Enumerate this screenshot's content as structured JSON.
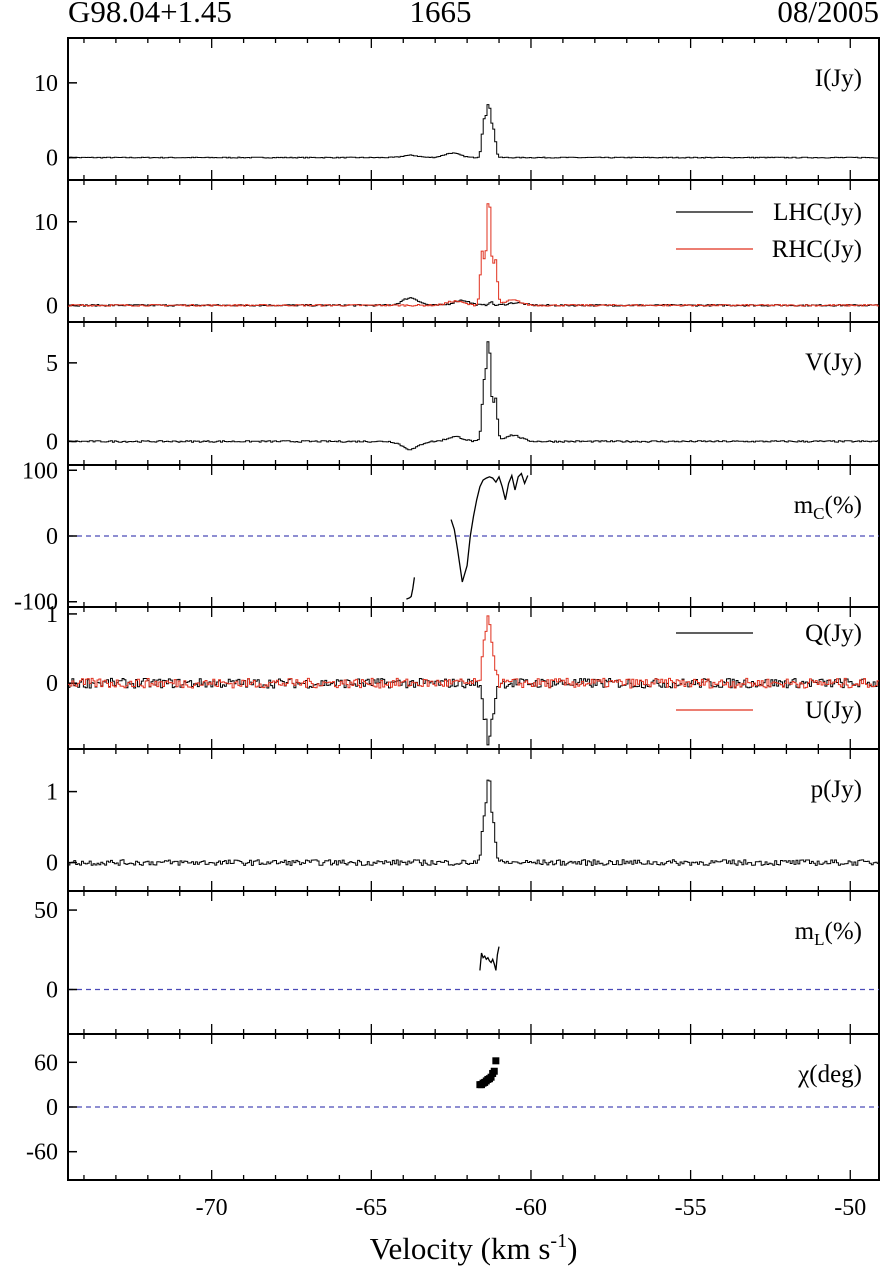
{
  "header": {
    "left": "G98.04+1.45",
    "center": "1665",
    "right": "08/2005"
  },
  "chart_data": {
    "type": "line",
    "xlabel": "Velocity (km s",
    "xlabel_sup": "-1",
    "xlabel_close": ")",
    "xlim": [
      -74.5,
      -49.1
    ],
    "xticks": [
      -70,
      -65,
      -60,
      -55,
      -50
    ],
    "x_tick_labels": [
      "-70",
      "-65",
      "-60",
      "-55",
      "-50"
    ],
    "panels": [
      {
        "id": "I",
        "label": "I(Jy)",
        "ylim": [
          -3,
          16
        ],
        "yticks": [
          0,
          10
        ],
        "ytick_labels": [
          "0",
          "10"
        ],
        "series": [
          {
            "name": "I(Jy)",
            "color": "#000000",
            "style": "step",
            "peaks": [
              [
                -61.35,
                6.8
              ],
              [
                -61.5,
                4.8
              ],
              [
                -61.2,
                3.5
              ],
              [
                -62.5,
                0.6
              ],
              [
                -63.8,
                0.3
              ]
            ],
            "noise": 0.06
          }
        ]
      },
      {
        "id": "LR",
        "label": "",
        "ylim": [
          -2,
          15
        ],
        "yticks": [
          0,
          10
        ],
        "ytick_labels": [
          "0",
          "10"
        ],
        "legend": [
          "LHC(Jy)",
          "RHC(Jy)"
        ],
        "series": [
          {
            "name": "LHC(Jy)",
            "color": "#000000",
            "style": "step",
            "peaks": [
              [
                -63.8,
                0.9
              ],
              [
                -62.2,
                0.6
              ],
              [
                -61.3,
                0.4
              ],
              [
                -60.5,
                0.3
              ]
            ],
            "noise": 0.1
          },
          {
            "name": "RHC(Jy)",
            "color": "#e0301e",
            "style": "step",
            "peaks": [
              [
                -61.35,
                13.2
              ],
              [
                -61.55,
                6.5
              ],
              [
                -61.15,
                5.5
              ],
              [
                -62.4,
                0.5
              ],
              [
                -60.6,
                0.6
              ]
            ],
            "noise": 0.1
          }
        ]
      },
      {
        "id": "V",
        "label": "V(Jy)",
        "ylim": [
          -1.5,
          7.6
        ],
        "yticks": [
          0,
          5
        ],
        "ytick_labels": [
          "0",
          "5"
        ],
        "series": [
          {
            "name": "V(Jy)",
            "color": "#000000",
            "style": "step",
            "peaks": [
              [
                -61.35,
                6.3
              ],
              [
                -61.5,
                3.5
              ],
              [
                -61.15,
                2.8
              ],
              [
                -62.4,
                0.3
              ],
              [
                -60.6,
                0.4
              ],
              [
                -63.8,
                -0.5
              ]
            ],
            "noise": 0.05
          }
        ]
      },
      {
        "id": "mC",
        "label": "m",
        "label_sub": "C",
        "label_suffix": "(%)",
        "ylim": [
          -108,
          108
        ],
        "yticks": [
          -100,
          0,
          100
        ],
        "ytick_labels": [
          "-100",
          "0",
          "100"
        ],
        "zero_line": true,
        "segments": [
          {
            "x": [
              -63.9,
              -63.8,
              -63.75,
              -63.7,
              -63.65
            ],
            "y": [
              -96,
              -94,
              -92,
              -80,
              -63
            ]
          },
          {
            "x": [
              -62.5,
              -62.4,
              -62.3,
              -62.15,
              -62.0,
              -61.9,
              -61.8,
              -61.7,
              -61.6,
              -61.5,
              -61.4,
              -61.3,
              -61.2,
              -61.1,
              -61.0,
              -60.9,
              -60.8,
              -60.7,
              -60.6,
              -60.5,
              -60.4,
              -60.3,
              -60.2,
              -60.1
            ],
            "y": [
              25,
              10,
              -20,
              -70,
              -45,
              0,
              30,
              55,
              75,
              85,
              88,
              90,
              88,
              82,
              90,
              75,
              55,
              80,
              92,
              70,
              90,
              95,
              80,
              92
            ]
          }
        ]
      },
      {
        "id": "QU",
        "label": "",
        "ylim": [
          -0.95,
          1.1
        ],
        "yticks": [
          0,
          1
        ],
        "ytick_labels": [
          "0",
          "1"
        ],
        "legend": [
          "Q(Jy)",
          "U(Jy)"
        ],
        "series": [
          {
            "name": "Q(Jy)",
            "color": "#000000",
            "style": "step",
            "peaks": [
              [
                -61.35,
                -0.85
              ],
              [
                -61.5,
                -0.4
              ],
              [
                -61.2,
                -0.35
              ]
            ],
            "noise": 0.07
          },
          {
            "name": "U(Jy)",
            "color": "#e0301e",
            "style": "step",
            "peaks": [
              [
                -61.35,
                0.95
              ],
              [
                -61.5,
                0.5
              ],
              [
                -61.2,
                0.4
              ]
            ],
            "noise": 0.07
          }
        ]
      },
      {
        "id": "p",
        "label": "p(Jy)",
        "ylim": [
          -0.4,
          1.6
        ],
        "yticks": [
          0,
          1
        ],
        "ytick_labels": [
          "0",
          "1"
        ],
        "series": [
          {
            "name": "p(Jy)",
            "color": "#000000",
            "style": "step",
            "peaks": [
              [
                -61.35,
                1.2
              ],
              [
                -61.5,
                0.6
              ],
              [
                -61.2,
                0.5
              ]
            ],
            "noise": 0.04
          }
        ]
      },
      {
        "id": "mL",
        "label": "m",
        "label_sub": "L",
        "label_suffix": "(%)",
        "ylim": [
          -28,
          62
        ],
        "yticks": [
          0,
          50
        ],
        "ytick_labels": [
          "0",
          "50"
        ],
        "zero_line": true,
        "segments": [
          {
            "x": [
              -61.6,
              -61.55,
              -61.5,
              -61.45,
              -61.4,
              -61.35,
              -61.3,
              -61.25,
              -61.2,
              -61.15,
              -61.1,
              -61.05,
              -61.0
            ],
            "y": [
              12,
              23,
              20,
              21,
              19,
              20,
              18,
              17,
              19,
              16,
              12,
              22,
              27
            ]
          }
        ]
      },
      {
        "id": "chi",
        "label": "χ(deg)",
        "ylim": [
          -98,
          98
        ],
        "yticks": [
          -60,
          0,
          60
        ],
        "ytick_labels": [
          "-60",
          "0",
          "60"
        ],
        "zero_line": true,
        "points": {
          "x": [
            -61.6,
            -61.55,
            -61.5,
            -61.45,
            -61.4,
            -61.35,
            -61.3,
            -61.25,
            -61.2,
            -61.15,
            -61.1
          ],
          "y": [
            30,
            30,
            32,
            33,
            35,
            37,
            38,
            40,
            45,
            48,
            62
          ]
        }
      }
    ]
  }
}
